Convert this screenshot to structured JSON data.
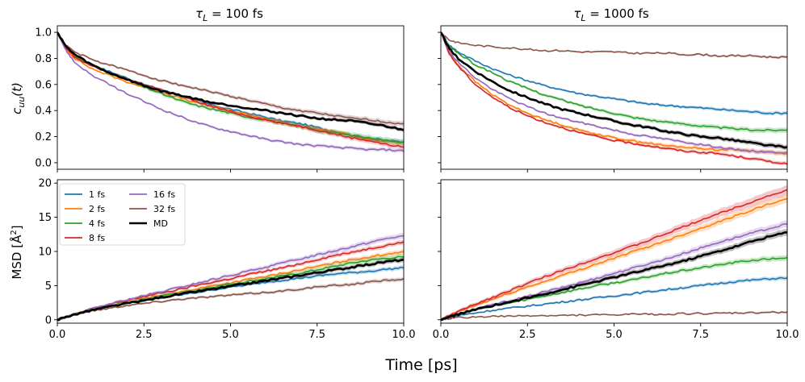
{
  "figure": {
    "shared_xlabel": "Time [ps]",
    "col_titles": [
      "τ_L = 100 fs",
      "τ_L = 1000 fs"
    ],
    "col_title_parts": [
      {
        "sym": "τ",
        "sub": "L",
        "rest": " = 100 fs"
      },
      {
        "sym": "τ",
        "sub": "L",
        "rest": " = 1000 fs"
      }
    ],
    "ylabel_top": {
      "base": "c",
      "sub": "uu",
      "rest": "(t)"
    },
    "ylabel_bottom": {
      "text": "MSD [Å",
      "sup": "2",
      "close": "]"
    }
  },
  "chart_data": [
    {
      "id": "cuu_tau100",
      "type": "line",
      "title": "τ_L = 100 fs",
      "xlabel": "Time [ps]",
      "ylabel": "c_uu(t)",
      "xlim": [
        0,
        10
      ],
      "ylim": [
        -0.05,
        1.05
      ],
      "xticks": [
        0.0,
        2.5,
        5.0,
        7.5,
        10.0
      ],
      "xtick_labels": [
        "0.0",
        "2.5",
        "5.0",
        "7.5",
        "10.0"
      ],
      "yticks": [
        0.0,
        0.2,
        0.4,
        0.6,
        0.8,
        1.0
      ],
      "ytick_labels": [
        "0.0",
        "0.2",
        "0.4",
        "0.6",
        "0.8",
        "1.0"
      ],
      "show_xtick_labels": false,
      "show_ytick_labels": true,
      "x": [
        0,
        0.25,
        0.5,
        1,
        1.5,
        2,
        2.5,
        3,
        3.5,
        4,
        4.5,
        5,
        5.5,
        6,
        6.5,
        7,
        7.5,
        8,
        8.5,
        9,
        9.5,
        10
      ],
      "series": [
        {
          "name": "1 fs",
          "color": "#1f77b4",
          "band": 0.015,
          "values": [
            1.0,
            0.88,
            0.82,
            0.75,
            0.7,
            0.65,
            0.6,
            0.56,
            0.52,
            0.48,
            0.44,
            0.41,
            0.38,
            0.35,
            0.32,
            0.3,
            0.27,
            0.24,
            0.21,
            0.19,
            0.17,
            0.16
          ]
        },
        {
          "name": "2 fs",
          "color": "#ff7f0e",
          "band": 0.015,
          "values": [
            1.0,
            0.87,
            0.8,
            0.72,
            0.67,
            0.62,
            0.58,
            0.54,
            0.5,
            0.46,
            0.43,
            0.4,
            0.37,
            0.34,
            0.31,
            0.28,
            0.26,
            0.24,
            0.21,
            0.18,
            0.16,
            0.15
          ]
        },
        {
          "name": "4 fs",
          "color": "#2ca02c",
          "band": 0.025,
          "values": [
            1.0,
            0.88,
            0.82,
            0.75,
            0.69,
            0.64,
            0.58,
            0.53,
            0.48,
            0.44,
            0.41,
            0.38,
            0.35,
            0.33,
            0.3,
            0.28,
            0.25,
            0.23,
            0.21,
            0.19,
            0.17,
            0.16
          ]
        },
        {
          "name": "8 fs",
          "color": "#d62728",
          "band": 0.02,
          "values": [
            1.0,
            0.88,
            0.81,
            0.74,
            0.69,
            0.64,
            0.6,
            0.56,
            0.52,
            0.47,
            0.43,
            0.39,
            0.36,
            0.33,
            0.3,
            0.28,
            0.25,
            0.22,
            0.19,
            0.17,
            0.14,
            0.12
          ]
        },
        {
          "name": "16 fs",
          "color": "#9467bd",
          "band": 0.015,
          "values": [
            1.0,
            0.86,
            0.77,
            0.67,
            0.6,
            0.53,
            0.47,
            0.41,
            0.36,
            0.31,
            0.27,
            0.24,
            0.21,
            0.18,
            0.16,
            0.14,
            0.13,
            0.12,
            0.11,
            0.1,
            0.1,
            0.09
          ]
        },
        {
          "name": "32 fs",
          "color": "#8c564b",
          "band": 0.02,
          "values": [
            1.0,
            0.9,
            0.85,
            0.79,
            0.75,
            0.71,
            0.67,
            0.63,
            0.6,
            0.57,
            0.54,
            0.51,
            0.48,
            0.45,
            0.42,
            0.4,
            0.38,
            0.36,
            0.34,
            0.33,
            0.31,
            0.3
          ]
        },
        {
          "name": "MD",
          "color": "#000000",
          "band": 0.015,
          "values": [
            1.0,
            0.89,
            0.83,
            0.75,
            0.69,
            0.64,
            0.59,
            0.55,
            0.52,
            0.49,
            0.46,
            0.44,
            0.42,
            0.4,
            0.38,
            0.36,
            0.34,
            0.33,
            0.32,
            0.3,
            0.28,
            0.25
          ]
        }
      ]
    },
    {
      "id": "cuu_tau1000",
      "type": "line",
      "title": "τ_L = 1000 fs",
      "xlabel": "Time [ps]",
      "ylabel": "c_uu(t)",
      "xlim": [
        0,
        10
      ],
      "ylim": [
        -0.05,
        1.05
      ],
      "xticks": [
        0.0,
        2.5,
        5.0,
        7.5,
        10.0
      ],
      "xtick_labels": [
        "0.0",
        "2.5",
        "5.0",
        "7.5",
        "10.0"
      ],
      "yticks": [
        0.0,
        0.2,
        0.4,
        0.6,
        0.8,
        1.0
      ],
      "ytick_labels": [
        "0.0",
        "0.2",
        "0.4",
        "0.6",
        "0.8",
        "1.0"
      ],
      "show_xtick_labels": false,
      "show_ytick_labels": false,
      "x": [
        0,
        0.25,
        0.5,
        1,
        1.5,
        2,
        2.5,
        3,
        3.5,
        4,
        4.5,
        5,
        5.5,
        6,
        6.5,
        7,
        7.5,
        8,
        8.5,
        9,
        9.5,
        10
      ],
      "series": [
        {
          "name": "1 fs",
          "color": "#1f77b4",
          "band": 0.015,
          "values": [
            1.0,
            0.9,
            0.85,
            0.78,
            0.72,
            0.67,
            0.63,
            0.59,
            0.56,
            0.53,
            0.51,
            0.49,
            0.47,
            0.45,
            0.44,
            0.43,
            0.42,
            0.41,
            0.4,
            0.39,
            0.38,
            0.38
          ]
        },
        {
          "name": "2 fs",
          "color": "#ff7f0e",
          "band": 0.02,
          "values": [
            1.0,
            0.84,
            0.75,
            0.62,
            0.52,
            0.44,
            0.38,
            0.33,
            0.29,
            0.25,
            0.22,
            0.19,
            0.17,
            0.15,
            0.13,
            0.12,
            0.11,
            0.1,
            0.1,
            0.09,
            0.08,
            0.07
          ]
        },
        {
          "name": "4 fs",
          "color": "#2ca02c",
          "band": 0.02,
          "values": [
            1.0,
            0.89,
            0.84,
            0.75,
            0.69,
            0.62,
            0.57,
            0.52,
            0.48,
            0.44,
            0.41,
            0.38,
            0.35,
            0.33,
            0.31,
            0.3,
            0.28,
            0.27,
            0.26,
            0.25,
            0.25,
            0.25
          ]
        },
        {
          "name": "8 fs",
          "color": "#d62728",
          "band": 0.015,
          "values": [
            1.0,
            0.83,
            0.74,
            0.6,
            0.5,
            0.42,
            0.36,
            0.31,
            0.27,
            0.23,
            0.2,
            0.17,
            0.15,
            0.13,
            0.11,
            0.09,
            0.08,
            0.07,
            0.05,
            0.03,
            0.01,
            -0.01
          ]
        },
        {
          "name": "16 fs",
          "color": "#9467bd",
          "band": 0.015,
          "values": [
            1.0,
            0.85,
            0.77,
            0.65,
            0.56,
            0.49,
            0.43,
            0.38,
            0.34,
            0.31,
            0.28,
            0.25,
            0.22,
            0.2,
            0.18,
            0.16,
            0.14,
            0.12,
            0.1,
            0.09,
            0.08,
            0.08
          ]
        },
        {
          "name": "32 fs",
          "color": "#8c564b",
          "band": 0.01,
          "values": [
            1.0,
            0.94,
            0.92,
            0.9,
            0.89,
            0.88,
            0.87,
            0.86,
            0.86,
            0.85,
            0.85,
            0.85,
            0.84,
            0.84,
            0.84,
            0.83,
            0.83,
            0.82,
            0.82,
            0.82,
            0.81,
            0.81
          ]
        },
        {
          "name": "MD",
          "color": "#000000",
          "band": 0.02,
          "values": [
            1.0,
            0.87,
            0.8,
            0.7,
            0.62,
            0.55,
            0.5,
            0.45,
            0.41,
            0.38,
            0.35,
            0.32,
            0.29,
            0.27,
            0.24,
            0.22,
            0.2,
            0.19,
            0.17,
            0.15,
            0.13,
            0.12
          ]
        }
      ]
    },
    {
      "id": "msd_tau100",
      "type": "line",
      "title": "",
      "xlabel": "Time [ps]",
      "ylabel": "MSD [Å^2]",
      "xlim": [
        0,
        10
      ],
      "ylim": [
        -0.5,
        20.5
      ],
      "xticks": [
        0.0,
        2.5,
        5.0,
        7.5,
        10.0
      ],
      "xtick_labels": [
        "0.0",
        "2.5",
        "5.0",
        "7.5",
        "10.0"
      ],
      "yticks": [
        0,
        5,
        10,
        15,
        20
      ],
      "ytick_labels": [
        "0",
        "5",
        "10",
        "15",
        "20"
      ],
      "show_xtick_labels": true,
      "show_ytick_labels": true,
      "legend": {
        "location": "upper-left",
        "ncol": 2
      },
      "x": [
        0,
        0.25,
        0.5,
        1,
        1.5,
        2,
        2.5,
        3,
        3.5,
        4,
        4.5,
        5,
        5.5,
        6,
        6.5,
        7,
        7.5,
        8,
        8.5,
        9,
        9.5,
        10
      ],
      "series": [
        {
          "name": "1 fs",
          "color": "#1f77b4",
          "band": 0.3,
          "values": [
            0,
            0.4,
            0.8,
            1.4,
            1.9,
            2.4,
            2.8,
            3.2,
            3.6,
            4.0,
            4.4,
            4.8,
            5.1,
            5.5,
            5.8,
            6.1,
            6.4,
            6.7,
            6.9,
            7.1,
            7.4,
            7.6
          ]
        },
        {
          "name": "2 fs",
          "color": "#ff7f0e",
          "band": 0.35,
          "values": [
            0,
            0.4,
            0.8,
            1.5,
            2.1,
            2.6,
            3.1,
            3.6,
            4.0,
            4.5,
            5.0,
            5.4,
            5.9,
            6.3,
            6.8,
            7.3,
            7.8,
            8.3,
            8.8,
            9.2,
            9.6,
            10.0
          ]
        },
        {
          "name": "4 fs",
          "color": "#2ca02c",
          "band": 0.4,
          "values": [
            0,
            0.4,
            0.8,
            1.4,
            2.0,
            2.5,
            3.0,
            3.5,
            3.9,
            4.3,
            4.8,
            5.2,
            5.6,
            6.0,
            6.4,
            6.8,
            7.3,
            7.8,
            8.3,
            8.7,
            9.0,
            9.2
          ]
        },
        {
          "name": "8 fs",
          "color": "#d62728",
          "band": 0.35,
          "values": [
            0,
            0.4,
            0.8,
            1.6,
            2.2,
            2.8,
            3.4,
            3.9,
            4.4,
            5.0,
            5.5,
            6.0,
            6.6,
            7.1,
            7.6,
            8.2,
            8.8,
            9.4,
            9.9,
            10.4,
            10.9,
            11.4
          ]
        },
        {
          "name": "16 fs",
          "color": "#9467bd",
          "band": 0.4,
          "values": [
            0,
            0.4,
            0.8,
            1.6,
            2.3,
            2.9,
            3.5,
            4.1,
            4.7,
            5.3,
            5.9,
            6.5,
            7.1,
            7.7,
            8.3,
            8.9,
            9.5,
            10.1,
            10.7,
            11.3,
            11.9,
            12.3
          ]
        },
        {
          "name": "32 fs",
          "color": "#8c564b",
          "band": 0.3,
          "values": [
            0,
            0.4,
            0.7,
            1.3,
            1.7,
            2.1,
            2.4,
            2.7,
            3.0,
            3.2,
            3.4,
            3.6,
            3.8,
            4.0,
            4.2,
            4.5,
            4.8,
            5.0,
            5.2,
            5.5,
            5.8,
            6.0
          ]
        },
        {
          "name": "MD",
          "color": "#000000",
          "band": 0.35,
          "values": [
            0,
            0.4,
            0.8,
            1.4,
            1.9,
            2.4,
            2.8,
            3.3,
            3.7,
            4.1,
            4.5,
            4.9,
            5.3,
            5.7,
            6.1,
            6.5,
            6.9,
            7.3,
            7.7,
            8.1,
            8.5,
            8.8
          ]
        }
      ]
    },
    {
      "id": "msd_tau1000",
      "type": "line",
      "title": "",
      "xlabel": "Time [ps]",
      "ylabel": "MSD [Å^2]",
      "xlim": [
        0,
        10
      ],
      "ylim": [
        -0.5,
        20.5
      ],
      "xticks": [
        0.0,
        2.5,
        5.0,
        7.5,
        10.0
      ],
      "xtick_labels": [
        "0.0",
        "2.5",
        "5.0",
        "7.5",
        "10.0"
      ],
      "yticks": [
        0,
        5,
        10,
        15,
        20
      ],
      "ytick_labels": [
        "0",
        "5",
        "10",
        "15",
        "20"
      ],
      "show_xtick_labels": true,
      "show_ytick_labels": false,
      "x": [
        0,
        0.25,
        0.5,
        1,
        1.5,
        2,
        2.5,
        3,
        3.5,
        4,
        4.5,
        5,
        5.5,
        6,
        6.5,
        7,
        7.5,
        8,
        8.5,
        9,
        9.5,
        10
      ],
      "series": [
        {
          "name": "1 fs",
          "color": "#1f77b4",
          "band": 0.3,
          "values": [
            0,
            0.3,
            0.6,
            1.0,
            1.4,
            1.7,
            2.0,
            2.3,
            2.6,
            2.9,
            3.2,
            3.5,
            3.8,
            4.1,
            4.4,
            4.7,
            5.0,
            5.3,
            5.6,
            5.8,
            6.0,
            6.1
          ]
        },
        {
          "name": "2 fs",
          "color": "#ff7f0e",
          "band": 0.6,
          "values": [
            0,
            0.6,
            1.2,
            2.1,
            3.0,
            3.9,
            4.8,
            5.6,
            6.5,
            7.3,
            8.2,
            9.0,
            9.9,
            10.7,
            11.6,
            12.5,
            13.4,
            14.3,
            15.2,
            16.1,
            17.0,
            17.7
          ]
        },
        {
          "name": "4 fs",
          "color": "#2ca02c",
          "band": 0.4,
          "values": [
            0,
            0.4,
            0.8,
            1.4,
            2.0,
            2.5,
            3.0,
            3.5,
            4.0,
            4.5,
            5.0,
            5.4,
            5.8,
            6.3,
            6.8,
            7.2,
            7.6,
            8.0,
            8.4,
            8.7,
            8.9,
            9.1
          ]
        },
        {
          "name": "8 fs",
          "color": "#d62728",
          "band": 0.7,
          "values": [
            0,
            0.6,
            1.2,
            2.3,
            3.3,
            4.3,
            5.3,
            6.3,
            7.2,
            8.1,
            9.0,
            9.8,
            10.7,
            11.6,
            12.6,
            13.6,
            14.6,
            15.5,
            16.4,
            17.3,
            18.2,
            19.0
          ]
        },
        {
          "name": "16 fs",
          "color": "#9467bd",
          "band": 0.5,
          "values": [
            0,
            0.4,
            0.8,
            1.5,
            2.2,
            2.8,
            3.4,
            4.1,
            4.7,
            5.4,
            6.1,
            6.8,
            7.5,
            8.2,
            8.9,
            9.7,
            10.5,
            11.3,
            12.0,
            12.7,
            13.4,
            14.0
          ]
        },
        {
          "name": "32 fs",
          "color": "#8c564b",
          "band": 0.15,
          "values": [
            0,
            0.2,
            0.3,
            0.4,
            0.5,
            0.5,
            0.6,
            0.6,
            0.6,
            0.7,
            0.7,
            0.7,
            0.8,
            0.8,
            0.8,
            0.9,
            0.9,
            0.9,
            1.0,
            1.0,
            1.1,
            1.1
          ]
        },
        {
          "name": "MD",
          "color": "#000000",
          "band": 0.5,
          "values": [
            0,
            0.4,
            0.8,
            1.5,
            2.1,
            2.6,
            3.2,
            3.8,
            4.4,
            5.0,
            5.6,
            6.2,
            6.8,
            7.4,
            8.0,
            8.6,
            9.3,
            10.0,
            10.7,
            11.5,
            12.2,
            12.8
          ]
        }
      ]
    }
  ]
}
